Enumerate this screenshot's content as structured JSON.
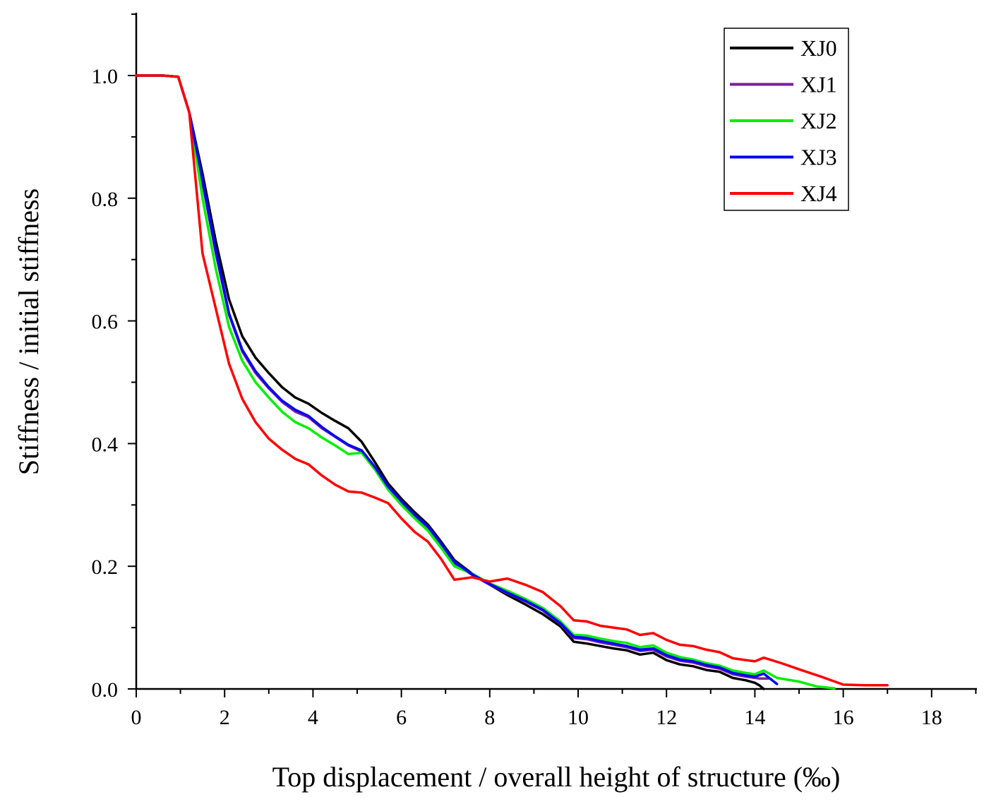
{
  "chart_data": {
    "type": "line",
    "title": "",
    "xlabel": "Top displacement / overall height of structure (‰)",
    "ylabel": "Stiffness / initial stiffness",
    "xlim": [
      0,
      19
    ],
    "ylim": [
      0,
      1.1
    ],
    "xticks": [
      0,
      2,
      4,
      6,
      8,
      10,
      12,
      14,
      16,
      18
    ],
    "yticks": [
      0.0,
      0.2,
      0.4,
      0.6,
      0.8,
      1.0
    ],
    "xtick_labels": [
      "0",
      "2",
      "4",
      "6",
      "8",
      "10",
      "12",
      "14",
      "16",
      "18"
    ],
    "ytick_labels": [
      "0.0",
      "0.2",
      "0.4",
      "0.6",
      "0.8",
      "1.0"
    ],
    "legend_position": "top-right",
    "series": [
      {
        "name": "XJ0",
        "color": "#000000",
        "x": [
          0,
          0.6,
          0.95,
          1.2,
          1.5,
          1.8,
          2.1,
          2.4,
          2.7,
          3.0,
          3.3,
          3.6,
          3.9,
          4.2,
          4.5,
          4.8,
          5.1,
          5.4,
          5.7,
          6.0,
          6.3,
          6.6,
          6.9,
          7.2,
          7.6,
          8.0,
          8.4,
          8.8,
          9.2,
          9.6,
          9.9,
          10.2,
          10.5,
          10.8,
          11.1,
          11.4,
          11.7,
          12.0,
          12.3,
          12.6,
          12.9,
          13.2,
          13.5,
          13.8,
          14.0,
          14.1,
          14.2
        ],
        "values": [
          1.0,
          1.0,
          0.998,
          0.94,
          0.84,
          0.73,
          0.635,
          0.575,
          0.54,
          0.515,
          0.492,
          0.475,
          0.465,
          0.45,
          0.437,
          0.425,
          0.403,
          0.37,
          0.335,
          0.31,
          0.288,
          0.268,
          0.24,
          0.21,
          0.188,
          0.17,
          0.153,
          0.138,
          0.122,
          0.102,
          0.077,
          0.074,
          0.07,
          0.066,
          0.063,
          0.056,
          0.059,
          0.047,
          0.04,
          0.037,
          0.031,
          0.028,
          0.018,
          0.014,
          0.01,
          0.006,
          0.0
        ]
      },
      {
        "name": "XJ1",
        "color": "#7a1f9e",
        "x": [
          0,
          0.6,
          0.95,
          1.2,
          1.5,
          1.8,
          2.1,
          2.4,
          2.7,
          3.0,
          3.3,
          3.6,
          3.9,
          4.2,
          4.5,
          4.8,
          5.1,
          5.4,
          5.7,
          6.0,
          6.3,
          6.6,
          6.9,
          7.2,
          7.6,
          8.0,
          8.4,
          8.8,
          9.2,
          9.6,
          9.9,
          10.2,
          10.5,
          10.8,
          11.1,
          11.4,
          11.7,
          12.0,
          12.3,
          12.6,
          12.9,
          13.2,
          13.5,
          13.8,
          14.1,
          14.3
        ],
        "values": [
          1.0,
          1.0,
          0.998,
          0.94,
          0.825,
          0.71,
          0.61,
          0.55,
          0.515,
          0.49,
          0.468,
          0.452,
          0.443,
          0.425,
          0.411,
          0.397,
          0.387,
          0.36,
          0.328,
          0.305,
          0.283,
          0.263,
          0.235,
          0.205,
          0.186,
          0.17,
          0.156,
          0.143,
          0.128,
          0.106,
          0.083,
          0.081,
          0.076,
          0.072,
          0.068,
          0.062,
          0.064,
          0.053,
          0.046,
          0.043,
          0.037,
          0.033,
          0.024,
          0.02,
          0.017,
          0.017
        ]
      },
      {
        "name": "XJ2",
        "color": "#00ee00",
        "x": [
          0,
          0.6,
          0.95,
          1.2,
          1.5,
          1.8,
          2.1,
          2.4,
          2.7,
          3.0,
          3.3,
          3.6,
          3.9,
          4.2,
          4.5,
          4.8,
          5.1,
          5.4,
          5.7,
          6.0,
          6.3,
          6.6,
          6.9,
          7.2,
          7.6,
          8.0,
          8.4,
          8.8,
          9.2,
          9.6,
          9.9,
          10.2,
          10.5,
          10.8,
          11.1,
          11.4,
          11.7,
          12.0,
          12.3,
          12.6,
          12.9,
          13.2,
          13.5,
          13.8,
          14.0,
          14.2,
          14.5,
          15.0,
          15.4,
          15.8
        ],
        "values": [
          1.0,
          1.0,
          0.998,
          0.94,
          0.8,
          0.685,
          0.59,
          0.535,
          0.5,
          0.475,
          0.452,
          0.435,
          0.425,
          0.41,
          0.397,
          0.383,
          0.385,
          0.358,
          0.325,
          0.3,
          0.278,
          0.258,
          0.23,
          0.2,
          0.188,
          0.172,
          0.16,
          0.147,
          0.132,
          0.11,
          0.088,
          0.087,
          0.082,
          0.078,
          0.075,
          0.068,
          0.071,
          0.059,
          0.052,
          0.048,
          0.042,
          0.038,
          0.03,
          0.026,
          0.024,
          0.03,
          0.018,
          0.012,
          0.004,
          0.001
        ]
      },
      {
        "name": "XJ3",
        "color": "#0000ff",
        "x": [
          0,
          0.6,
          0.95,
          1.2,
          1.5,
          1.8,
          2.1,
          2.4,
          2.7,
          3.0,
          3.3,
          3.6,
          3.9,
          4.2,
          4.5,
          4.8,
          5.1,
          5.4,
          5.7,
          6.0,
          6.3,
          6.6,
          6.9,
          7.2,
          7.6,
          8.0,
          8.4,
          8.8,
          9.2,
          9.6,
          9.9,
          10.2,
          10.5,
          10.8,
          11.1,
          11.4,
          11.7,
          12.0,
          12.3,
          12.6,
          12.9,
          13.2,
          13.5,
          13.8,
          14.0,
          14.2,
          14.5
        ],
        "values": [
          1.0,
          1.0,
          0.998,
          0.94,
          0.83,
          0.715,
          0.612,
          0.553,
          0.518,
          0.492,
          0.47,
          0.455,
          0.445,
          0.427,
          0.412,
          0.398,
          0.389,
          0.362,
          0.33,
          0.306,
          0.284,
          0.265,
          0.237,
          0.207,
          0.187,
          0.171,
          0.157,
          0.144,
          0.129,
          0.107,
          0.085,
          0.083,
          0.078,
          0.074,
          0.07,
          0.064,
          0.066,
          0.055,
          0.048,
          0.045,
          0.039,
          0.035,
          0.026,
          0.022,
          0.02,
          0.025,
          0.008
        ]
      },
      {
        "name": "XJ4",
        "color": "#ff0000",
        "x": [
          0,
          0.6,
          0.95,
          1.2,
          1.5,
          1.8,
          2.1,
          2.4,
          2.7,
          3.0,
          3.3,
          3.6,
          3.9,
          4.2,
          4.5,
          4.8,
          5.1,
          5.4,
          5.7,
          6.0,
          6.3,
          6.6,
          6.9,
          7.2,
          7.6,
          8.0,
          8.4,
          8.8,
          9.2,
          9.6,
          9.9,
          10.2,
          10.5,
          10.8,
          11.1,
          11.4,
          11.7,
          12.0,
          12.3,
          12.6,
          12.9,
          13.2,
          13.5,
          13.8,
          14.0,
          14.2,
          14.6,
          15.0,
          15.5,
          16.0,
          16.5,
          17.0
        ],
        "values": [
          1.0,
          1.0,
          0.998,
          0.94,
          0.71,
          0.62,
          0.53,
          0.473,
          0.435,
          0.408,
          0.39,
          0.375,
          0.366,
          0.348,
          0.333,
          0.322,
          0.32,
          0.312,
          0.303,
          0.278,
          0.256,
          0.24,
          0.212,
          0.178,
          0.182,
          0.175,
          0.18,
          0.17,
          0.158,
          0.135,
          0.112,
          0.11,
          0.103,
          0.1,
          0.097,
          0.088,
          0.091,
          0.08,
          0.072,
          0.07,
          0.064,
          0.06,
          0.05,
          0.047,
          0.045,
          0.051,
          0.042,
          0.032,
          0.02,
          0.007,
          0.006,
          0.006
        ]
      }
    ]
  }
}
